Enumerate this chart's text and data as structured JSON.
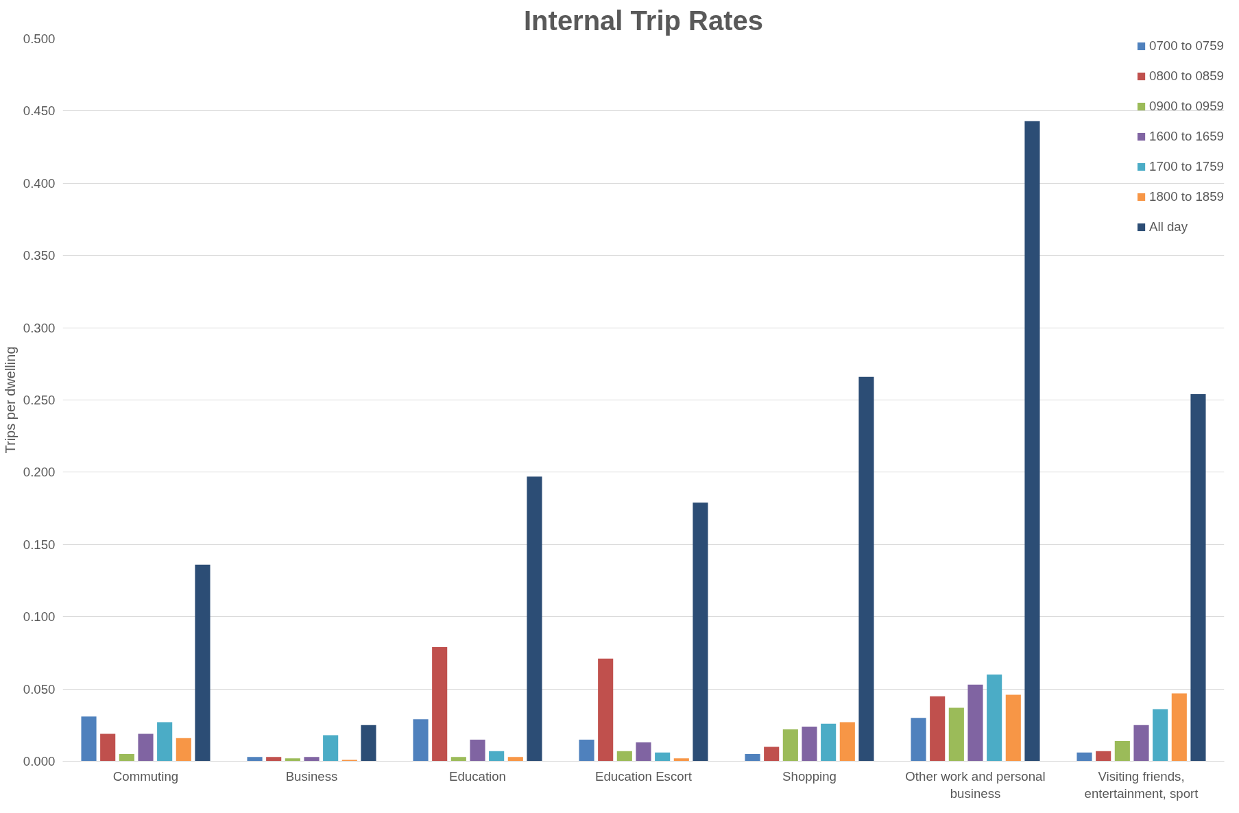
{
  "chart_data": {
    "type": "bar",
    "title": "Internal Trip Rates",
    "ylabel": "Trips per dwelling",
    "categories": [
      "Commuting",
      "Business",
      "Education",
      "Education Escort",
      "Shopping",
      "Other work and personal business",
      "Visiting friends, entertainment, sport"
    ],
    "series": [
      {
        "name": "0700 to 0759",
        "color": "#4f81bd",
        "values": [
          0.031,
          0.003,
          0.029,
          0.015,
          0.005,
          0.03,
          0.006
        ]
      },
      {
        "name": "0800 to 0859",
        "color": "#c0504d",
        "values": [
          0.019,
          0.003,
          0.079,
          0.071,
          0.01,
          0.045,
          0.007
        ]
      },
      {
        "name": "0900 to 0959",
        "color": "#9bbb59",
        "values": [
          0.005,
          0.002,
          0.003,
          0.007,
          0.022,
          0.037,
          0.014
        ]
      },
      {
        "name": "1600 to 1659",
        "color": "#8064a2",
        "values": [
          0.019,
          0.003,
          0.015,
          0.013,
          0.024,
          0.053,
          0.025
        ]
      },
      {
        "name": "1700 to 1759",
        "color": "#4bacc6",
        "values": [
          0.027,
          0.018,
          0.007,
          0.006,
          0.026,
          0.06,
          0.036
        ]
      },
      {
        "name": "1800 to 1859",
        "color": "#f79646",
        "values": [
          0.016,
          0.001,
          0.003,
          0.002,
          0.027,
          0.046,
          0.047
        ]
      },
      {
        "name": "All day",
        "color": "#2c4d75",
        "values": [
          0.136,
          0.025,
          0.197,
          0.179,
          0.266,
          0.443,
          0.254
        ]
      }
    ],
    "ylim": [
      0,
      0.5
    ],
    "yticks": [
      {
        "value": 0,
        "label": "0.000"
      },
      {
        "value": 0.05,
        "label": "0.050"
      },
      {
        "value": 0.1,
        "label": "0.100"
      },
      {
        "value": 0.15,
        "label": "0.150"
      },
      {
        "value": 0.2,
        "label": "0.200"
      },
      {
        "value": 0.25,
        "label": "0.250"
      },
      {
        "value": 0.3,
        "label": "0.300"
      },
      {
        "value": 0.35,
        "label": "0.350"
      },
      {
        "value": 0.4,
        "label": "0.400"
      },
      {
        "value": 0.45,
        "label": "0.450"
      },
      {
        "value": 0.5,
        "label": "0.500"
      }
    ],
    "grid": "y",
    "legend": "top right"
  }
}
